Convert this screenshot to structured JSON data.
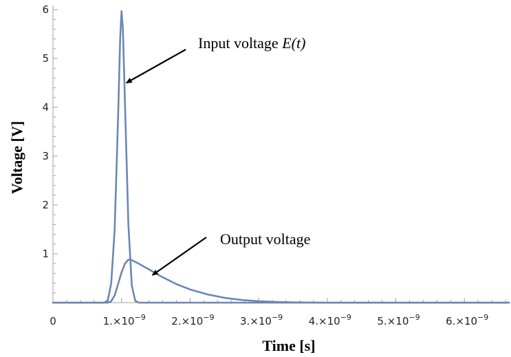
{
  "chart_data": {
    "type": "line",
    "xlabel": "Time [s]",
    "ylabel": "Voltage [V]",
    "xlim": [
      0,
      6.65e-09
    ],
    "ylim": [
      0,
      6
    ],
    "x_ticks": [
      {
        "value": 0,
        "label": "0"
      },
      {
        "value": 1e-09,
        "label": "1.×10",
        "exp": "−9"
      },
      {
        "value": 2e-09,
        "label": "2.×10",
        "exp": "−9"
      },
      {
        "value": 3e-09,
        "label": "3.×10",
        "exp": "−9"
      },
      {
        "value": 4e-09,
        "label": "4.×10",
        "exp": "−9"
      },
      {
        "value": 5e-09,
        "label": "5.×10",
        "exp": "−9"
      },
      {
        "value": 6e-09,
        "label": "6.×10",
        "exp": "−9"
      }
    ],
    "y_ticks": [
      {
        "value": 1,
        "label": "1"
      },
      {
        "value": 2,
        "label": "2"
      },
      {
        "value": 3,
        "label": "3"
      },
      {
        "value": 4,
        "label": "4"
      },
      {
        "value": 5,
        "label": "5"
      },
      {
        "value": 6,
        "label": "6"
      }
    ],
    "grid": false,
    "color": "#6c86b4",
    "series": [
      {
        "points": [
          [
            0,
            0
          ],
          [
            7.5e-10,
            0
          ],
          [
            8e-10,
            0.05
          ],
          [
            8.5e-10,
            0.4
          ],
          [
            9e-10,
            1.5
          ],
          [
            9.5e-10,
            3.8
          ],
          [
            9.8e-10,
            5.4
          ],
          [
            1e-09,
            5.97
          ],
          [
            1.02e-09,
            5.6
          ],
          [
            1.05e-09,
            4.1
          ],
          [
            1.1e-09,
            1.6
          ],
          [
            1.15e-09,
            0.35
          ],
          [
            1.2e-09,
            0.04
          ],
          [
            1.25e-09,
            0
          ],
          [
            6.65e-09,
            0
          ]
        ]
      },
      {
        "points": [
          [
            0,
            0
          ],
          [
            8e-10,
            0
          ],
          [
            8.5e-10,
            0.03
          ],
          [
            9e-10,
            0.15
          ],
          [
            9.5e-10,
            0.38
          ],
          [
            1e-09,
            0.62
          ],
          [
            1.05e-09,
            0.8
          ],
          [
            1.1e-09,
            0.88
          ],
          [
            1.15e-09,
            0.87
          ],
          [
            1.25e-09,
            0.8
          ],
          [
            1.4e-09,
            0.68
          ],
          [
            1.6e-09,
            0.52
          ],
          [
            1.8e-09,
            0.38
          ],
          [
            2e-09,
            0.27
          ],
          [
            2.25e-09,
            0.17
          ],
          [
            2.5e-09,
            0.1
          ],
          [
            2.75e-09,
            0.055
          ],
          [
            3e-09,
            0.03
          ],
          [
            3.25e-09,
            0.015
          ],
          [
            3.5e-09,
            0.007
          ],
          [
            3.75e-09,
            0.002
          ],
          [
            4e-09,
            0
          ],
          [
            6.65e-09,
            0
          ]
        ]
      }
    ],
    "annotations": [
      {
        "text": "Input voltage ",
        "math": "E(t)",
        "target": [
          1.07e-09,
          4.5
        ]
      },
      {
        "text": "Output voltage",
        "target": [
          1.45e-09,
          0.62
        ]
      }
    ]
  }
}
